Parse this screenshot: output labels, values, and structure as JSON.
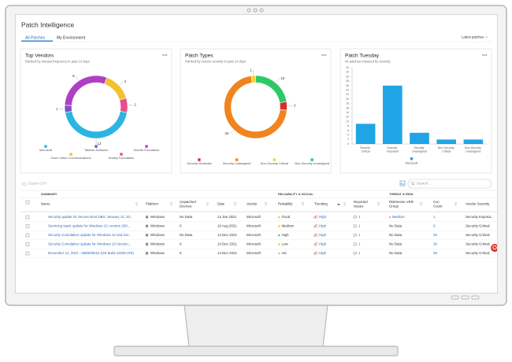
{
  "header": {
    "title": "Patch Intelligence",
    "tabs": [
      "All Patches",
      "My Environment"
    ],
    "filter": "Latest patches"
  },
  "chart_data": [
    {
      "type": "donut",
      "title": "Top Vendors",
      "subtitle": "Ranked by release frequency in past 14 days",
      "categories": [
        "Microsoft",
        "Tableau Software",
        "Mozilla Foundation",
        "Zoom Video Communications",
        "Nodejs Foundation"
      ],
      "values": [
        12,
        1,
        8,
        4,
        2
      ],
      "colors": [
        "#2bb5e0",
        "#7a52c7",
        "#b03ec4",
        "#f2c12e",
        "#e8508a"
      ]
    },
    {
      "type": "donut",
      "title": "Patch Types",
      "subtitle": "Ranked by vendor severity in past 14 days",
      "categories": [
        "Security Moderate",
        "Security Unassigned",
        "Non-Security Critical",
        "Non-Security Unassigned"
      ],
      "values": [
        2,
        32,
        1,
        10
      ],
      "colors": [
        "#d32f2f",
        "#f0841e",
        "#f4d03f",
        "#2ec866"
      ]
    },
    {
      "type": "bar",
      "title": "Patch Tuesday",
      "subtitle": "44 patches released by severity",
      "categories": [
        "Security Critical",
        "Security Important",
        "Security Unassigned",
        "Non-Security Critical",
        "Non-Security Unassigned"
      ],
      "series": [
        {
          "name": "Microsoft",
          "color": "#1fa5e6",
          "values": [
            9,
            26,
            5,
            2,
            2
          ]
        }
      ],
      "ylim": [
        0,
        34
      ],
      "yticks": [
        0,
        2,
        4,
        6,
        8,
        10,
        12,
        14,
        16,
        18,
        20,
        22,
        24,
        26,
        28,
        30,
        32,
        34
      ],
      "grid": false
    }
  ],
  "table": {
    "export": "Export CSV",
    "search_placeholder": "Search...",
    "groups": [
      "SUMMARY",
      "RELIABILITY & SOCIAL",
      "THREAT & RISK"
    ],
    "columns": [
      "Name",
      "Platform",
      "Unpatched Devices",
      "Date",
      "Vendor",
      "Reliability",
      "Trending",
      "Reported Issues",
      "RiskSense VRR Group",
      "Cve Count",
      "Vendor Severity"
    ],
    "rows": [
      [
        "Security update for Secure Boot DBX: January 12, 20...",
        "Windows",
        "No Data",
        "12 Jan 2021",
        "Microsoft",
        "Good",
        "High",
        1,
        "Medium",
        1,
        "Security Importa..."
      ],
      [
        "Servicing stack update for Windows 10, version 200...",
        "Windows",
        "0",
        "10 Aug 2021",
        "Microsoft",
        "Medium",
        "High",
        1,
        "No Data",
        0,
        "Security Critical"
      ],
      [
        "Security Cumulative Update for Windows 10 and Ser...",
        "Windows",
        "No Data",
        "14 Dec 2021",
        "Microsoft",
        "High",
        "High",
        1,
        "No Data",
        25,
        "Security Critical"
      ],
      [
        "Security Cumulative Update for Windows 10 Version...",
        "Windows",
        "0",
        "14 Dec 2021",
        "Microsoft",
        "Low",
        "High",
        1,
        "No Data",
        30,
        "Security Critical"
      ],
      [
        "December 14, 2021 - KB5008215 (OS Build 22000.376)",
        "Windows",
        "0",
        "14 Dec 2021",
        "Microsoft",
        "n/a",
        "High",
        1,
        "No Data",
        25,
        "Security Critical"
      ]
    ]
  }
}
